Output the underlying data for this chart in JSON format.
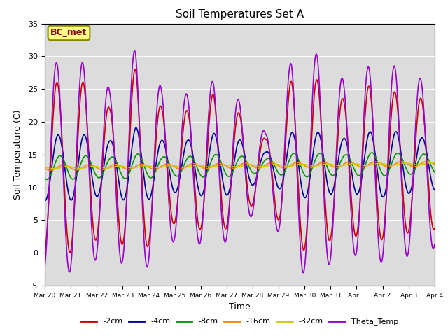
{
  "title": "Soil Temperatures Set A",
  "xlabel": "Time",
  "ylabel": "Soil Temperature (C)",
  "ylim": [
    -5,
    35
  ],
  "annotation_text": "BC_met",
  "background_color": "#dcdcdc",
  "legend_entries": [
    "-2cm",
    "-4cm",
    "-8cm",
    "-16cm",
    "-32cm",
    "Theta_Temp"
  ],
  "line_colors": [
    "#cc0000",
    "#000099",
    "#009900",
    "#ff8800",
    "#cccc00",
    "#9900cc"
  ],
  "line_widths": [
    1.2,
    1.2,
    1.2,
    1.2,
    1.2,
    1.2
  ],
  "x_tick_labels": [
    "Mar 20",
    "Mar 21",
    "Mar 22",
    "Mar 23",
    "Mar 24",
    "Mar 25",
    "Mar 26",
    "Mar 27",
    "Mar 28",
    "Mar 29",
    "Mar 30",
    "Mar 31",
    "Apr 1",
    "Apr 2",
    "Apr 3",
    "Apr 4"
  ],
  "grid_color": "#ffffff",
  "annotation_bg": "#ffff88",
  "annotation_border": "#888800",
  "base_temp": 13.0,
  "figsize": [
    6.4,
    4.8
  ],
  "dpi": 100
}
